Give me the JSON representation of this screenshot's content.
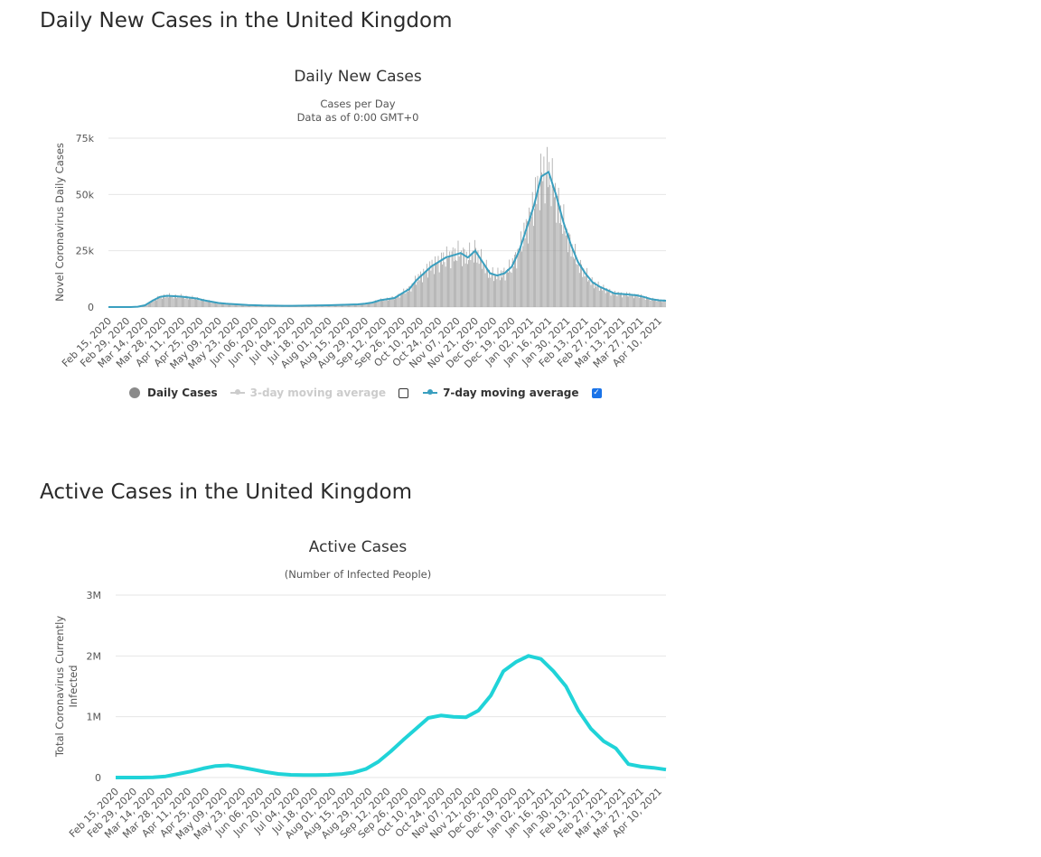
{
  "section1": {
    "heading": "Daily New Cases in the United Kingdom"
  },
  "section2": {
    "heading": "Active Cases in the United Kingdom"
  },
  "legend": {
    "daily_cases": "Daily Cases",
    "ma3": "3-day moving average",
    "ma7": "7-day moving average",
    "ma3_checked": false,
    "ma7_checked": true,
    "check_mark": "✓"
  },
  "colors": {
    "bars": "#999999",
    "ma7": "#3a9fbf",
    "active": "#20d3d8",
    "grid": "#e6e6e6"
  },
  "chart_data": [
    {
      "type": "bar",
      "title": "Daily New Cases",
      "subtitle": [
        "Cases per Day",
        "Data as of 0:00 GMT+0"
      ],
      "ylabel": "Novel Coronavirus Daily Cases",
      "xlabel": "",
      "ylim": [
        0,
        75000
      ],
      "yticks": [
        0,
        25000,
        50000,
        75000
      ],
      "ytick_labels": [
        "0",
        "25k",
        "50k",
        "75k"
      ],
      "x_tick_labels": [
        "Feb 15, 2020",
        "Feb 29, 2020",
        "Mar 14, 2020",
        "Mar 28, 2020",
        "Apr 11, 2020",
        "Apr 25, 2020",
        "May 09, 2020",
        "May 23, 2020",
        "Jun 06, 2020",
        "Jun 20, 2020",
        "Jul 04, 2020",
        "Jul 18, 2020",
        "Aug 01, 2020",
        "Aug 15, 2020",
        "Aug 29, 2020",
        "Sep 12, 2020",
        "Sep 26, 2020",
        "Oct 10, 2020",
        "Oct 24, 2020",
        "Nov 07, 2020",
        "Nov 21, 2020",
        "Dec 05, 2020",
        "Dec 19, 2020",
        "Jan 02, 2021",
        "Jan 16, 2021",
        "Jan 30, 2021",
        "Feb 13, 2021",
        "Feb 27, 2021",
        "Mar 13, 2021",
        "Mar 27, 2021",
        "Apr 10, 2021"
      ],
      "series": [
        {
          "name": "Daily Cases",
          "approx_weekly_values": [
            0,
            0,
            0,
            20,
            150,
            800,
            2800,
            4500,
            5000,
            4800,
            4600,
            4200,
            3800,
            3000,
            2400,
            1800,
            1500,
            1300,
            1100,
            900,
            800,
            700,
            650,
            600,
            580,
            550,
            600,
            650,
            700,
            750,
            800,
            900,
            1000,
            1100,
            1200,
            1500,
            2000,
            3000,
            3500,
            4000,
            6000,
            8000,
            12000,
            15000,
            18000,
            20000,
            22000,
            23000,
            24000,
            22000,
            25000,
            20000,
            15000,
            14000,
            15000,
            18000,
            25000,
            35000,
            45000,
            58000,
            60000,
            50000,
            38000,
            28000,
            20000,
            15000,
            11000,
            9000,
            7500,
            6000,
            5800,
            5500,
            5200,
            4500,
            3500,
            3000,
            2800
          ]
        },
        {
          "name": "3-day moving average",
          "visible": false
        },
        {
          "name": "7-day moving average",
          "approx_weekly_values": [
            0,
            0,
            0,
            20,
            150,
            800,
            2800,
            4500,
            5000,
            4800,
            4600,
            4200,
            3800,
            3000,
            2400,
            1800,
            1500,
            1300,
            1100,
            900,
            800,
            700,
            650,
            600,
            580,
            550,
            600,
            650,
            700,
            750,
            800,
            900,
            1000,
            1100,
            1200,
            1500,
            2000,
            3000,
            3500,
            4000,
            6000,
            8000,
            12000,
            15000,
            18000,
            20000,
            22000,
            23000,
            24000,
            22000,
            25000,
            20000,
            15000,
            14000,
            15000,
            18000,
            25000,
            35000,
            45000,
            58000,
            60000,
            50000,
            38000,
            28000,
            20000,
            15000,
            11000,
            9000,
            7500,
            6000,
            5800,
            5500,
            5200,
            4500,
            3500,
            3000,
            2800
          ]
        }
      ]
    },
    {
      "type": "line",
      "title": "Active Cases",
      "subtitle": [
        "(Number of Infected People)"
      ],
      "ylabel": [
        "Total Coronavirus Currently",
        "Infected"
      ],
      "xlabel": "",
      "ylim": [
        0,
        3000000
      ],
      "yticks": [
        0,
        1000000,
        2000000,
        3000000
      ],
      "ytick_labels": [
        "0",
        "1M",
        "2M",
        "3M"
      ],
      "x_tick_labels": [
        "Feb 15, 2020",
        "Feb 29, 2020",
        "Mar 14, 2020",
        "Mar 28, 2020",
        "Apr 11, 2020",
        "Apr 25, 2020",
        "May 09, 2020",
        "May 23, 2020",
        "Jun 06, 2020",
        "Jun 20, 2020",
        "Jul 04, 2020",
        "Jul 18, 2020",
        "Aug 01, 2020",
        "Aug 15, 2020",
        "Aug 29, 2020",
        "Sep 12, 2020",
        "Sep 26, 2020",
        "Oct 10, 2020",
        "Oct 24, 2020",
        "Nov 07, 2020",
        "Nov 21, 2020",
        "Dec 05, 2020",
        "Dec 19, 2020",
        "Jan 02, 2021",
        "Jan 16, 2021",
        "Jan 30, 2021",
        "Feb 13, 2021",
        "Feb 27, 2021",
        "Mar 13, 2021",
        "Mar 27, 2021",
        "Apr 10, 2021"
      ],
      "series": [
        {
          "name": "Currently Infected",
          "values": [
            0,
            0,
            0,
            5000,
            20000,
            60000,
            100000,
            150000,
            190000,
            200000,
            170000,
            130000,
            90000,
            60000,
            45000,
            40000,
            40000,
            45000,
            55000,
            80000,
            140000,
            260000,
            430000,
            620000,
            800000,
            980000,
            1020000,
            1000000,
            990000,
            1100000,
            1350000,
            1750000,
            1900000,
            2000000,
            1950000,
            1750000,
            1500000,
            1100000,
            800000,
            600000,
            480000,
            220000,
            180000,
            160000,
            130000
          ]
        }
      ]
    }
  ]
}
